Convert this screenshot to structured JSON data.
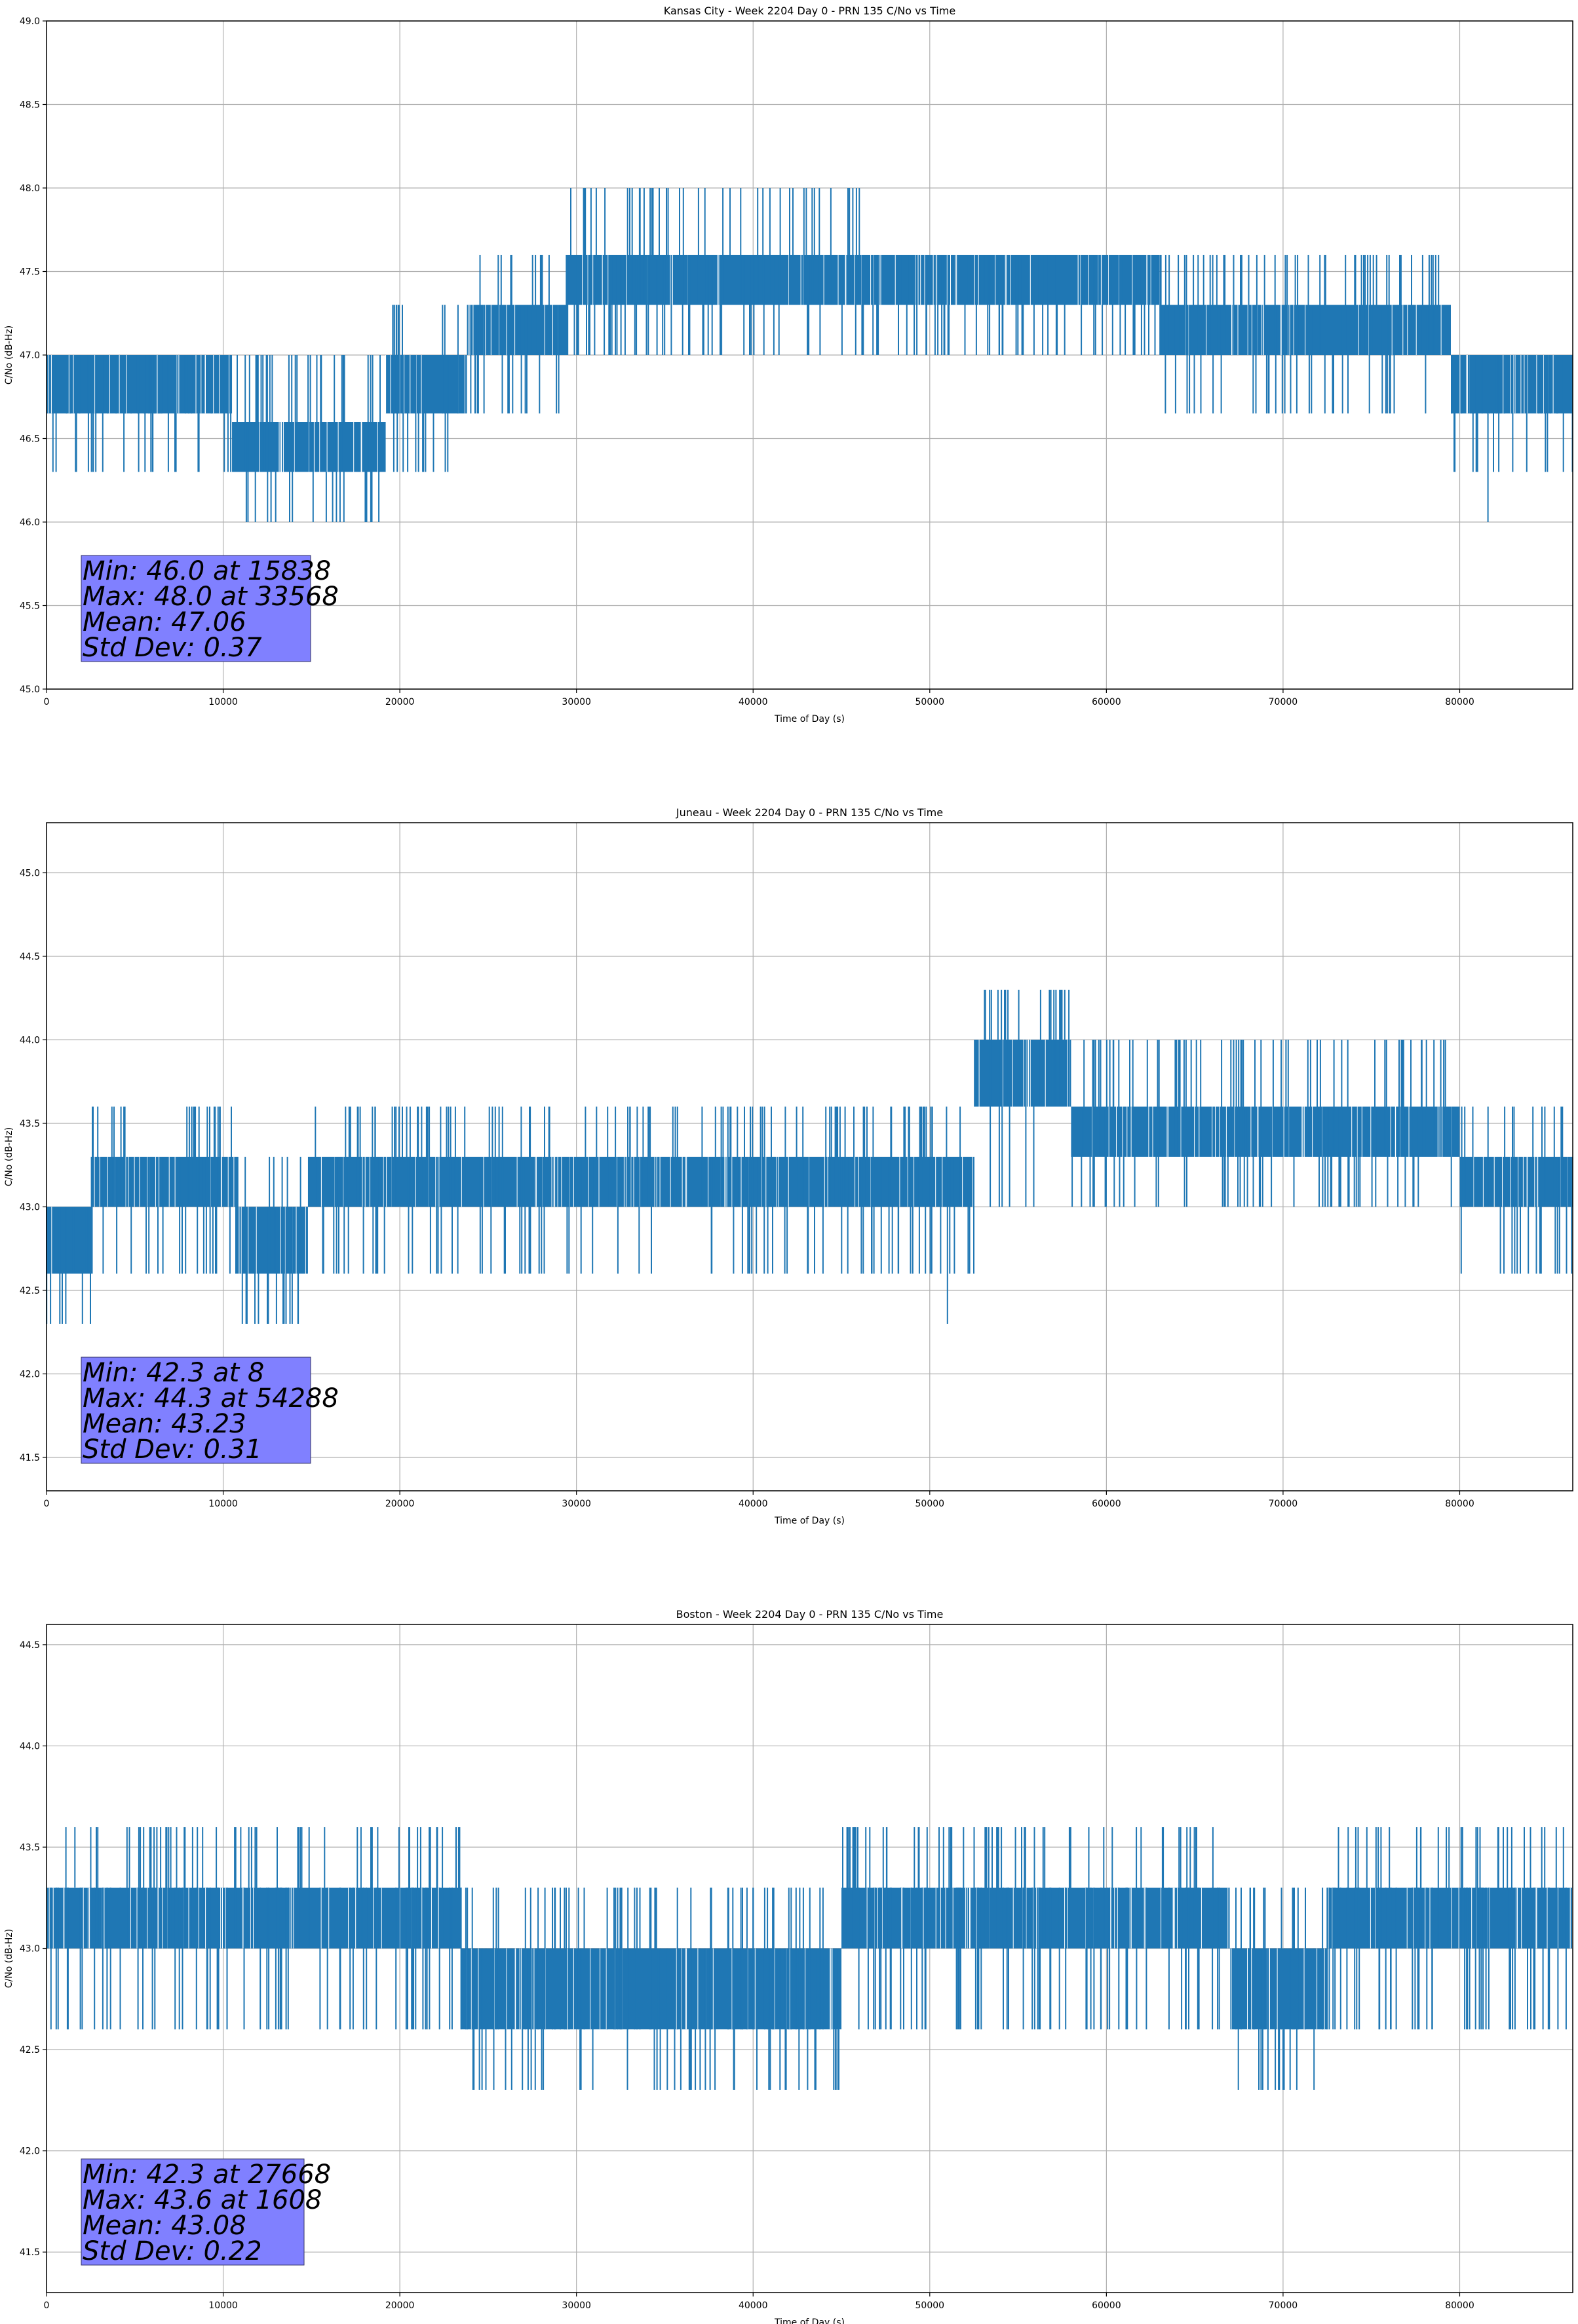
{
  "chart_data": [
    {
      "type": "line",
      "title": "Kansas City - Week 2204 Day 0 - PRN 135 C/No vs Time",
      "xlabel": "Time of Day (s)",
      "ylabel": "C/No (dB-Hz)",
      "xlim": [
        0,
        86400
      ],
      "ylim": [
        45.0,
        49.0
      ],
      "xticks": [
        0,
        10000,
        20000,
        30000,
        40000,
        50000,
        60000,
        70000,
        80000
      ],
      "yticks": [
        "45.0",
        "45.5",
        "46.0",
        "46.5",
        "47.0",
        "47.5",
        "48.0",
        "48.5",
        "49.0"
      ],
      "grid": true,
      "color": "#1f77b4",
      "quantization": 0.35,
      "series": [
        {
          "segments": [
            {
              "x": [
                0,
                10500
              ],
              "y": [
                46.65,
                47.0
              ],
              "noise_down": 46.3,
              "noise_up": 47.0
            },
            {
              "x": [
                10500,
                19200
              ],
              "y": [
                46.3,
                46.6
              ],
              "noise_down": 46.0,
              "noise_up": 47.0
            },
            {
              "x": [
                19200,
                23800
              ],
              "y": [
                46.65,
                47.0
              ],
              "noise_down": 46.3,
              "noise_up": 47.3
            },
            {
              "x": [
                23800,
                29500
              ],
              "y": [
                47.0,
                47.3
              ],
              "noise_down": 46.65,
              "noise_up": 47.6
            },
            {
              "x": [
                29500,
                47800
              ],
              "y": [
                47.3,
                47.6
              ],
              "noise_down": 47.0,
              "noise_up": 48.0
            },
            {
              "x": [
                47800,
                63000
              ],
              "y": [
                47.3,
                47.6
              ],
              "noise_down": 47.0,
              "noise_up": 47.6
            },
            {
              "x": [
                63000,
                79500
              ],
              "y": [
                47.0,
                47.3
              ],
              "noise_down": 46.65,
              "noise_up": 47.6
            },
            {
              "x": [
                79500,
                86400
              ],
              "y": [
                46.65,
                47.0
              ],
              "noise_down": 46.3,
              "noise_up": 47.0
            }
          ],
          "extremes": [
            {
              "x": 15838,
              "y": 46.0
            },
            {
              "x": 33568,
              "y": 48.0
            },
            {
              "x": 81600,
              "y": 46.0
            }
          ]
        }
      ],
      "stats": {
        "min": "Min: 46.0 at 15838",
        "max": "Max: 48.0 at 33568",
        "mean": "Mean: 47.06",
        "std": "Std Dev: 0.37"
      },
      "stats_box_color": "#8080ff"
    },
    {
      "type": "line",
      "title": "Juneau - Week 2204 Day 0 - PRN 135 C/No vs Time",
      "xlabel": "Time of Day (s)",
      "ylabel": "C/No (dB-Hz)",
      "xlim": [
        0,
        86400
      ],
      "ylim": [
        41.3,
        45.3
      ],
      "xticks": [
        0,
        10000,
        20000,
        30000,
        40000,
        50000,
        60000,
        70000,
        80000
      ],
      "yticks": [
        "41.5",
        "42.0",
        "42.5",
        "43.0",
        "43.5",
        "44.0",
        "44.5",
        "45.0"
      ],
      "grid": true,
      "color": "#1f77b4",
      "quantization": 0.35,
      "series": [
        {
          "segments": [
            {
              "x": [
                0,
                2500
              ],
              "y": [
                42.6,
                43.0
              ],
              "noise_down": 42.3,
              "noise_up": 43.0
            },
            {
              "x": [
                2500,
                10800
              ],
              "y": [
                43.0,
                43.3
              ],
              "noise_down": 42.6,
              "noise_up": 43.6
            },
            {
              "x": [
                10800,
                14800
              ],
              "y": [
                42.6,
                43.0
              ],
              "noise_down": 42.3,
              "noise_up": 43.3
            },
            {
              "x": [
                14800,
                52500
              ],
              "y": [
                43.0,
                43.3
              ],
              "noise_down": 42.6,
              "noise_up": 43.6
            },
            {
              "x": [
                52500,
                58000
              ],
              "y": [
                43.6,
                44.0
              ],
              "noise_down": 43.0,
              "noise_up": 44.3
            },
            {
              "x": [
                58000,
                80000
              ],
              "y": [
                43.3,
                43.6
              ],
              "noise_down": 43.0,
              "noise_up": 44.0
            },
            {
              "x": [
                80000,
                86400
              ],
              "y": [
                43.0,
                43.3
              ],
              "noise_down": 42.6,
              "noise_up": 43.6
            }
          ],
          "extremes": [
            {
              "x": 8,
              "y": 42.3
            },
            {
              "x": 54288,
              "y": 44.3
            },
            {
              "x": 12500,
              "y": 42.3
            },
            {
              "x": 51000,
              "y": 42.3
            }
          ]
        }
      ],
      "stats": {
        "min": "Min: 42.3 at 8",
        "max": "Max: 44.3 at 54288",
        "mean": "Mean: 43.23",
        "std": "Std Dev: 0.31"
      },
      "stats_box_color": "#8080ff"
    },
    {
      "type": "line",
      "title": "Boston - Week 2204 Day 0 - PRN 135 C/No vs Time",
      "xlabel": "Time of Day (s)",
      "ylabel": "C/No (dB-Hz)",
      "xlim": [
        0,
        86400
      ],
      "ylim": [
        41.3,
        44.6
      ],
      "xticks": [
        0,
        10000,
        20000,
        30000,
        40000,
        50000,
        60000,
        70000,
        80000
      ],
      "yticks": [
        "41.5",
        "42.0",
        "42.5",
        "43.0",
        "43.5",
        "44.0",
        "44.5"
      ],
      "grid": true,
      "color": "#1f77b4",
      "quantization": 0.35,
      "series": [
        {
          "segments": [
            {
              "x": [
                0,
                23500
              ],
              "y": [
                43.0,
                43.3
              ],
              "noise_down": 42.6,
              "noise_up": 43.6
            },
            {
              "x": [
                23500,
                45000
              ],
              "y": [
                42.6,
                43.0
              ],
              "noise_down": 42.3,
              "noise_up": 43.3
            },
            {
              "x": [
                45000,
                67000
              ],
              "y": [
                43.0,
                43.3
              ],
              "noise_down": 42.6,
              "noise_up": 43.6
            },
            {
              "x": [
                67000,
                72500
              ],
              "y": [
                42.6,
                43.0
              ],
              "noise_down": 42.3,
              "noise_up": 43.3
            },
            {
              "x": [
                72500,
                86400
              ],
              "y": [
                43.0,
                43.3
              ],
              "noise_down": 42.6,
              "noise_up": 43.6
            }
          ],
          "extremes": [
            {
              "x": 27668,
              "y": 42.3
            },
            {
              "x": 1608,
              "y": 43.6
            },
            {
              "x": 30200,
              "y": 42.3
            },
            {
              "x": 70000,
              "y": 42.3
            }
          ]
        }
      ],
      "stats": {
        "min": "Min: 42.3 at 27668",
        "max": "Max: 43.6 at 1608",
        "mean": "Mean: 43.08",
        "std": "Std Dev: 0.22"
      },
      "stats_box_color": "#8080ff"
    }
  ]
}
